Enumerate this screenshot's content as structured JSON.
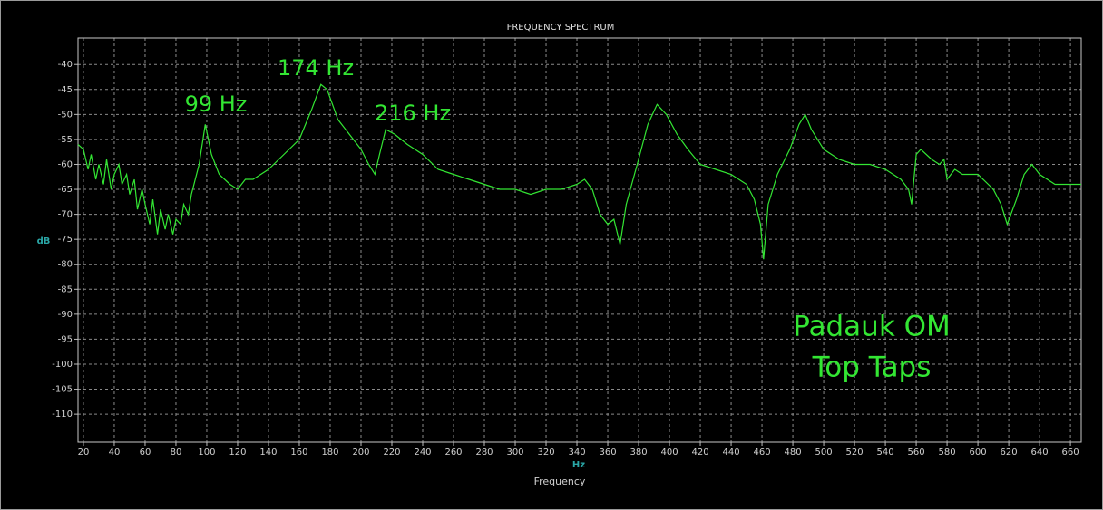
{
  "chart_data": {
    "type": "line",
    "title": "FREQUENCY SPECTRUM",
    "y_label": "dB",
    "x_unit": "Hz",
    "x_label": "Frequency",
    "annotations": [
      "99 Hz",
      "174 Hz",
      "216 Hz",
      "Padauk OM",
      "Top Taps"
    ],
    "xlim": [
      16.5,
      667
    ],
    "ylim": [
      -115.6,
      -34.7
    ],
    "xticks": [
      20,
      40,
      60,
      80,
      100,
      120,
      140,
      160,
      180,
      200,
      220,
      240,
      260,
      280,
      300,
      320,
      340,
      360,
      380,
      400,
      420,
      440,
      460,
      480,
      500,
      520,
      540,
      560,
      580,
      600,
      620,
      640,
      660
    ],
    "yticks": [
      -40,
      -45,
      -50,
      -55,
      -60,
      -65,
      -70,
      -75,
      -80,
      -85,
      -90,
      -95,
      -100,
      -105,
      -110
    ],
    "grid": true,
    "series": [
      {
        "color": "#33e633",
        "x": [
          16.5,
          20,
          23,
          25,
          28,
          30,
          33,
          35,
          38,
          40,
          43,
          45,
          48,
          50,
          53,
          55,
          58,
          60,
          63,
          65,
          68,
          70,
          73,
          75,
          78,
          80,
          83,
          85,
          88,
          90,
          95,
          99,
          103,
          108,
          115,
          120,
          125,
          130,
          140,
          150,
          160,
          168,
          174,
          178,
          185,
          195,
          200,
          205,
          209,
          212,
          216,
          222,
          230,
          240,
          250,
          260,
          270,
          280,
          290,
          300,
          310,
          320,
          330,
          340,
          345,
          350,
          355,
          360,
          364,
          368,
          372,
          380,
          386,
          392,
          398,
          405,
          412,
          420,
          430,
          440,
          450,
          455,
          459,
          461,
          464,
          470,
          478,
          484,
          488,
          492,
          500,
          510,
          520,
          530,
          540,
          550,
          555,
          557,
          560,
          563,
          570,
          575,
          578,
          580,
          585,
          590,
          600,
          610,
          615,
          619,
          625,
          630,
          635,
          640,
          650,
          660,
          667
        ],
        "values": [
          -56,
          -57,
          -61,
          -58,
          -63,
          -60,
          -64,
          -59,
          -65,
          -62,
          -60,
          -64,
          -62,
          -66,
          -63,
          -69,
          -65,
          -68,
          -72,
          -67,
          -74,
          -69,
          -73,
          -70,
          -74,
          -71,
          -72,
          -68,
          -70,
          -66,
          -60,
          -52,
          -58,
          -62,
          -64,
          -65,
          -63,
          -63,
          -61,
          -58,
          -55,
          -49,
          -44,
          -45,
          -51,
          -55,
          -57,
          -60,
          -62,
          -58,
          -53,
          -54,
          -56,
          -58,
          -61,
          -62,
          -63,
          -64,
          -65,
          -65,
          -66,
          -65,
          -65,
          -64,
          -63,
          -65,
          -70,
          -72,
          -71,
          -76,
          -68,
          -59,
          -52,
          -48,
          -50,
          -54,
          -57,
          -60,
          -61,
          -62,
          -64,
          -67,
          -72,
          -79,
          -68,
          -62,
          -57,
          -52,
          -50,
          -53,
          -57,
          -59,
          -60,
          -60,
          -61,
          -63,
          -65,
          -68,
          -58,
          -57,
          -59,
          -60,
          -59,
          -63,
          -61,
          -62,
          -62,
          -65,
          -68,
          -72,
          -67,
          -62,
          -60,
          -62,
          -64,
          -64,
          -64
        ]
      }
    ]
  }
}
